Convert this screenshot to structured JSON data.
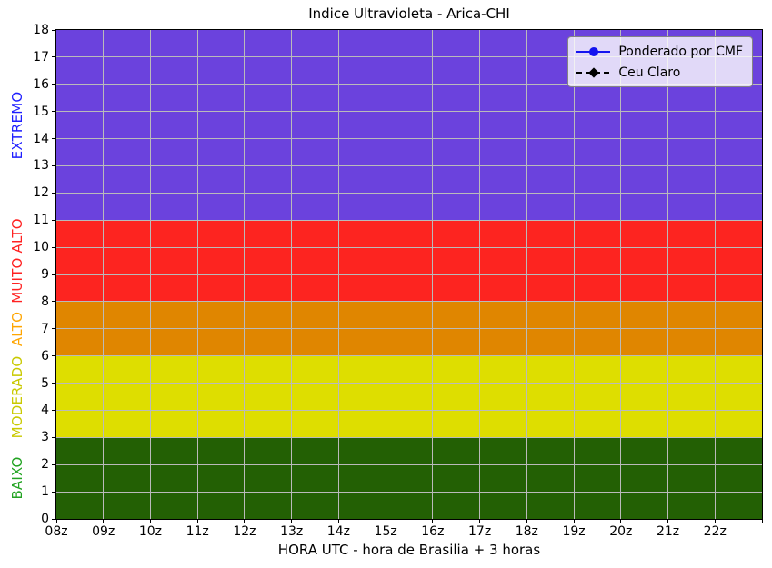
{
  "chart_data": {
    "type": "area",
    "title": "Indice Ultravioleta - Arica-CHI",
    "xlabel": "HORA UTC - hora de Brasilia + 3 horas",
    "ylabel": "",
    "x_range": [
      8,
      23
    ],
    "y_range": [
      0,
      18
    ],
    "x_tick_labels": [
      "08z",
      "09z",
      "10z",
      "11z",
      "12z",
      "13z",
      "14z",
      "15z",
      "16z",
      "17z",
      "18z",
      "19z",
      "20z",
      "21z",
      "22z"
    ],
    "y_tick_labels": [
      "0",
      "1",
      "2",
      "3",
      "4",
      "5",
      "6",
      "7",
      "8",
      "9",
      "10",
      "11",
      "12",
      "13",
      "14",
      "15",
      "16",
      "17",
      "18"
    ],
    "grid": true,
    "grid_color": "#bababa",
    "bands": [
      {
        "label": "EXTREMO",
        "from": 11,
        "to": 18,
        "fill": "#6B42DD",
        "label_color": "#1F1FFF"
      },
      {
        "label": "MUITO ALTO",
        "from": 8,
        "to": 11,
        "fill": "#FD2420",
        "label_color": "#FF2222"
      },
      {
        "label": "ALTO",
        "from": 6,
        "to": 8,
        "fill": "#E08600",
        "label_color": "#FFA500"
      },
      {
        "label": "MODERADO",
        "from": 3,
        "to": 6,
        "fill": "#DEDE00",
        "label_color": "#C9C900"
      },
      {
        "label": "BAIXO",
        "from": 0,
        "to": 3,
        "fill": "#236004",
        "label_color": "#22A322"
      }
    ],
    "legend": {
      "position": "upper right",
      "items": [
        {
          "label": "Ponderado por CMF",
          "color": "#1414EF",
          "linestyle": "solid",
          "marker": "circle"
        },
        {
          "label": "Ceu Claro",
          "color": "#000000",
          "linestyle": "dashed",
          "marker": "diamond"
        }
      ]
    },
    "series": [
      {
        "name": "Ponderado por CMF",
        "x": [],
        "values": []
      },
      {
        "name": "Ceu Claro",
        "x": [],
        "values": []
      }
    ]
  }
}
